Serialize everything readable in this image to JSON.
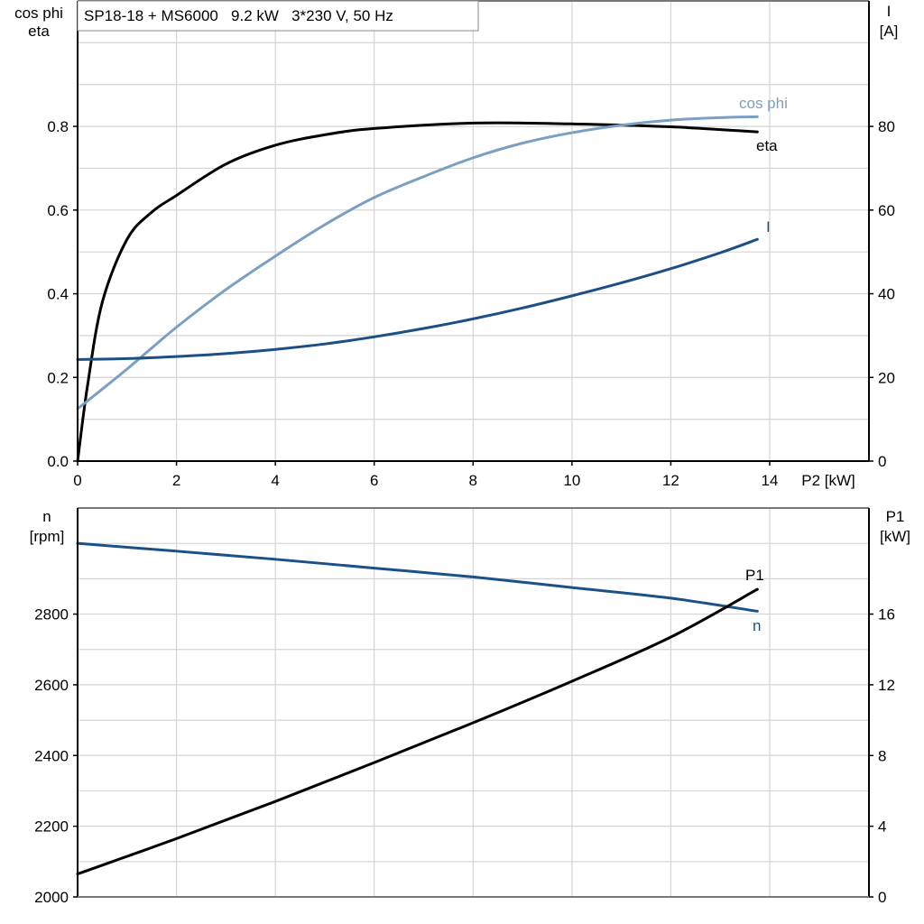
{
  "chart_data": [
    {
      "type": "line",
      "title": "SP18-18 + MS6000   9.2 kW   3*230 V, 50 Hz",
      "xlabel": "P2 [kW]",
      "ylabel_left": [
        "cos phi",
        "eta"
      ],
      "ylabel_right": [
        "I",
        "[A]"
      ],
      "xlim": [
        0,
        16
      ],
      "ylim_left": [
        0,
        1.1
      ],
      "ylim_right": [
        0,
        110
      ],
      "x_ticks": [
        "0",
        "2",
        "4",
        "6",
        "8",
        "10",
        "12",
        "14"
      ],
      "y_ticks_left": [
        "0.0",
        "0.2",
        "0.4",
        "0.6",
        "0.8"
      ],
      "y_ticks_right": [
        "0",
        "20",
        "40",
        "60",
        "80"
      ],
      "grid": true,
      "series": [
        {
          "name": "eta",
          "axis": "left",
          "color": "#000000",
          "x": [
            0,
            0.2,
            0.5,
            1,
            1.5,
            2,
            3,
            4,
            5,
            6,
            8,
            10,
            12,
            13.75
          ],
          "y": [
            0,
            0.18,
            0.38,
            0.53,
            0.595,
            0.635,
            0.71,
            0.755,
            0.78,
            0.795,
            0.808,
            0.806,
            0.799,
            0.787
          ]
        },
        {
          "name": "cos phi",
          "axis": "left",
          "color": "#7b9fc2",
          "x": [
            0,
            1,
            2,
            3,
            4,
            5,
            6,
            7,
            8,
            9,
            10,
            11,
            12,
            13,
            13.75
          ],
          "y": [
            0.125,
            0.22,
            0.32,
            0.41,
            0.49,
            0.565,
            0.63,
            0.68,
            0.725,
            0.76,
            0.785,
            0.803,
            0.815,
            0.821,
            0.823
          ]
        },
        {
          "name": "I",
          "axis": "right",
          "color": "#1b4f86",
          "x": [
            0,
            1,
            2,
            3,
            4,
            5,
            6,
            7,
            8,
            9,
            10,
            11,
            12,
            13,
            13.75
          ],
          "y": [
            24.3,
            24.5,
            25.0,
            25.7,
            26.7,
            28.0,
            29.7,
            31.7,
            34.0,
            36.6,
            39.5,
            42.6,
            46.0,
            49.8,
            53.0
          ]
        }
      ]
    },
    {
      "type": "line",
      "xlim": [
        0,
        16
      ],
      "ylabel_left": [
        "n",
        "[rpm]"
      ],
      "ylabel_right": [
        "P1",
        "[kW]"
      ],
      "ylim_left": [
        2000,
        3100
      ],
      "ylim_right": [
        0,
        22
      ],
      "y_ticks_left": [
        "2000",
        "2200",
        "2400",
        "2600",
        "2800"
      ],
      "y_ticks_right": [
        "0",
        "4",
        "8",
        "12",
        "16"
      ],
      "grid": true,
      "series": [
        {
          "name": "n",
          "axis": "left",
          "color": "#1b5189",
          "x": [
            0,
            2,
            4,
            6,
            8,
            10,
            12,
            13.75
          ],
          "y": [
            3000,
            2978,
            2955,
            2930,
            2905,
            2875,
            2845,
            2808
          ]
        },
        {
          "name": "P1",
          "axis": "right",
          "color": "#000000",
          "x": [
            0,
            2,
            4,
            6,
            8,
            10,
            12,
            13.75
          ],
          "y": [
            1.3,
            3.3,
            5.4,
            7.6,
            9.85,
            12.2,
            14.7,
            17.4
          ]
        }
      ]
    }
  ]
}
